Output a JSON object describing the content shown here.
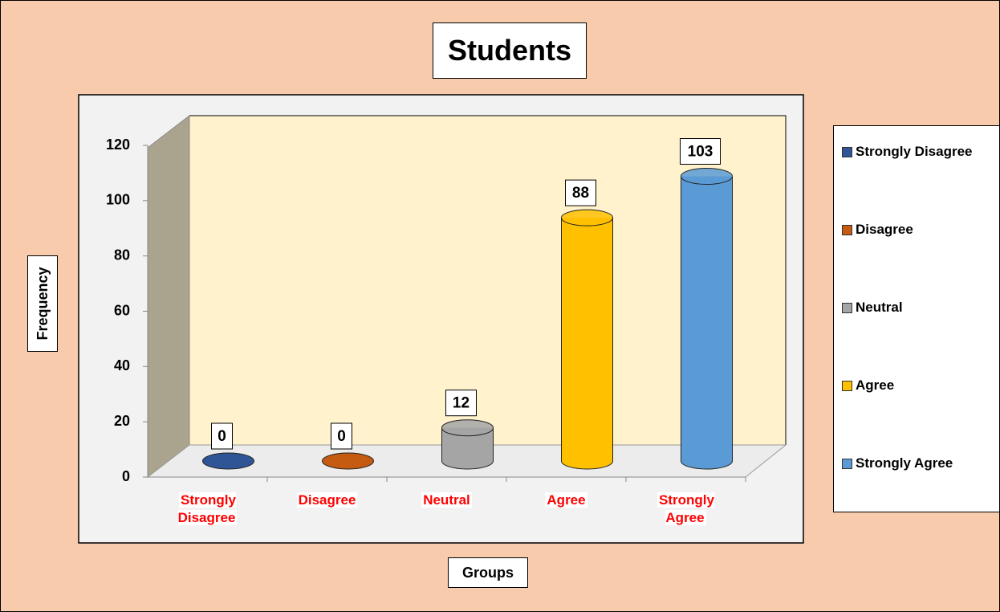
{
  "chart_data": {
    "type": "cylinder",
    "title": "Students",
    "x_label": "Groups",
    "y_label": "Frequency",
    "categories": [
      "Strongly Disagree",
      "Disagree",
      "Neutral",
      "Agree",
      "Strongly Agree"
    ],
    "values": [
      0,
      0,
      12,
      88,
      103
    ],
    "colors": [
      "#2f5597",
      "#c55a11",
      "#a5a5a5",
      "#ffc000",
      "#5b9bd5"
    ],
    "ylim": [
      0,
      120
    ],
    "yticks": [
      0,
      20,
      40,
      60,
      80,
      100,
      120
    ],
    "legend": "right"
  }
}
